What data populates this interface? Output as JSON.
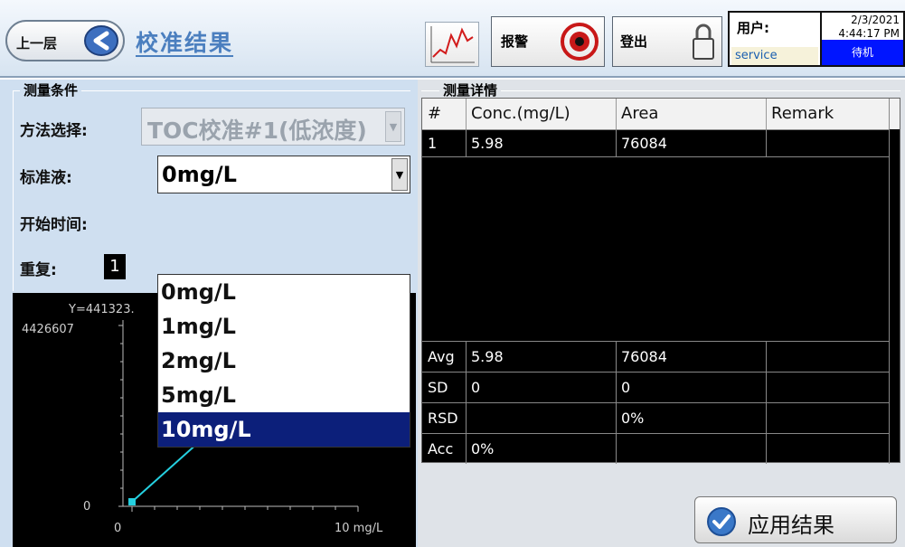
{
  "header": {
    "back_label": "上一层",
    "title": "校准结果",
    "alarm_label": "报警",
    "logout_label": "登出",
    "user_key": "用户:",
    "user_value": "service",
    "date": "2/3/2021",
    "time": "4:44:17 PM",
    "status": "待机",
    "icons": [
      "back-arrow-icon",
      "trend-chart-icon",
      "alarm-icon",
      "lock-icon"
    ]
  },
  "conditions": {
    "group_title": "测量条件",
    "method_label": "方法选择:",
    "method_value": "TOC校准#1(低浓度)",
    "standard_label": "标准液:",
    "standard_value": "0mg/L",
    "start_time_label": "开始时间:",
    "repeat_label": "重复:",
    "repeat_value": "1",
    "standard_options": [
      "0mg/L",
      "1mg/L",
      "2mg/L",
      "5mg/L",
      "10mg/L"
    ],
    "highlighted_option": "10mg/L"
  },
  "plot": {
    "equation": "Y=441323.",
    "y_top_label": "4426607",
    "y_zero_label": "0",
    "x_zero_label": "0",
    "x_max_label": "10 mg/L",
    "line_color": "#25d0e0"
  },
  "details": {
    "group_title": "测量详情",
    "columns": [
      "#",
      "Conc.(mg/L)",
      "Area",
      "Remark"
    ],
    "rows": [
      {
        "idx": "1",
        "conc": "5.98",
        "area": "76084",
        "remark": ""
      }
    ],
    "stats": [
      {
        "label": "Avg",
        "conc": "5.98",
        "area": "76084"
      },
      {
        "label": "SD",
        "conc": "0",
        "area": "0"
      },
      {
        "label": "RSD",
        "conc": "",
        "area": "0%"
      },
      {
        "label": "Acc",
        "conc": "0%",
        "area": ""
      }
    ]
  },
  "apply_label": "应用结果"
}
